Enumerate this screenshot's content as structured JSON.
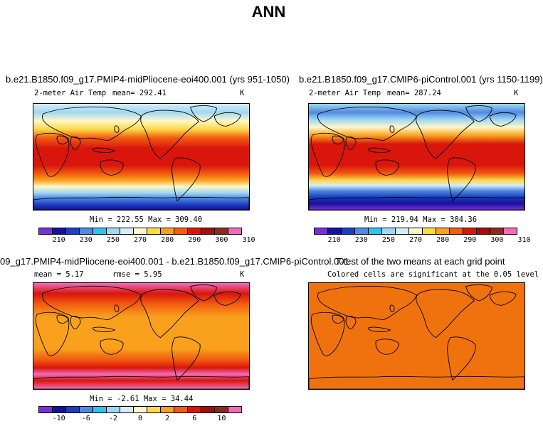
{
  "figure": {
    "title": "ANN"
  },
  "panels": {
    "top_left": {
      "title": "b.e21.B1850.f09_g17.PMIP4-midPliocene-eoi400.001 (yrs 951-1050)",
      "variable": "2-meter Air Temp",
      "mean_text": "mean= 292.41",
      "units": "K",
      "stats": "Min = 222.55 Max = 309.40"
    },
    "top_right": {
      "title": "b.e21.B1850.f09_g17.CMIP6-piControl.001 (yrs 1150-1199)",
      "variable": "2-meter Air Temp",
      "mean_text": "mean= 287.24",
      "units": "K",
      "stats": "Min = 219.94 Max = 304.36"
    },
    "bottom_left": {
      "title": "09_g17.PMIP4-midPliocene-eoi400.001 - b.e21.B1850.f09_g17.CMIP6-piControl.001",
      "mean_text": "mean =  5.17",
      "rmse_text": "rmse =  5.95",
      "units": "K",
      "stats": "Min =  -2.61 Max =  34.44"
    },
    "bottom_right": {
      "title": "T-test of the two means at each grid point",
      "subtitle": "Colored cells are significant at the 0.05 level",
      "fill_color": "#f0720f"
    }
  },
  "colorbars": {
    "temperature": {
      "colors": [
        "#7a30d8",
        "#16109a",
        "#1d3ec0",
        "#4f8ae0",
        "#2ec3ee",
        "#9fd8f2",
        "#d6ecf7",
        "#fff7c7",
        "#fcd948",
        "#f9a11c",
        "#f25d10",
        "#d9150c",
        "#a30d0d",
        "#8c2a20",
        "#f06cb8"
      ],
      "labels": [
        "210",
        "230",
        "250",
        "270",
        "280",
        "290",
        "300",
        "310"
      ]
    },
    "difference": {
      "colors": [
        "#7a30d8",
        "#16109a",
        "#1d3ec0",
        "#4f8ae0",
        "#2ec3ee",
        "#9fd8f2",
        "#d6ecf7",
        "#fff7c7",
        "#fcd948",
        "#f9a11c",
        "#f25d10",
        "#d9150c",
        "#a30d0d",
        "#8c2a20",
        "#f06cb8"
      ],
      "labels": [
        "-10",
        "-6",
        "-2",
        "0",
        "2",
        "6",
        "10"
      ]
    }
  }
}
